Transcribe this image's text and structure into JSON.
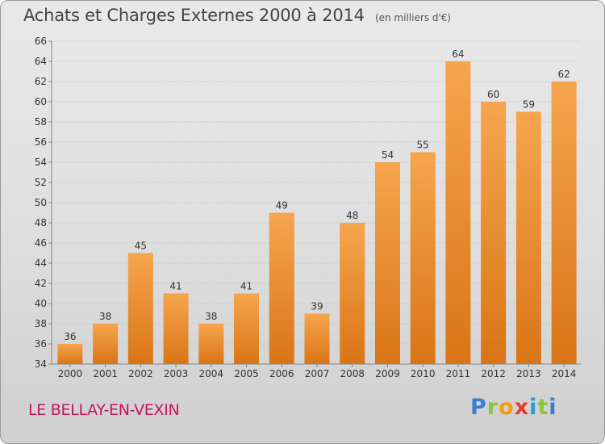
{
  "header": {
    "title": "Achats et Charges Externes 2000 à 2014",
    "subtitle": "(en milliers d'€)"
  },
  "footer": {
    "commune": "LE BELLAY-EN-VEXIN",
    "brand_letters": [
      "P",
      "r",
      "o",
      "x",
      "i",
      "t",
      "i"
    ]
  },
  "colors": {
    "bar_light": "#f6a54e",
    "bar_dark": "#d97516",
    "commune": "#c2185b",
    "brand": [
      "#3a7fd5",
      "#8cc63f",
      "#f39c12",
      "#e63c2e",
      "#2e9ad4",
      "#8cc63f",
      "#3a7fd5"
    ]
  },
  "chart_data": {
    "type": "bar",
    "title": "Achats et Charges Externes 2000 à 2014",
    "subtitle": "(en milliers d'€)",
    "xlabel": "",
    "ylabel": "",
    "categories": [
      "2000",
      "2001",
      "2002",
      "2003",
      "2004",
      "2005",
      "2006",
      "2007",
      "2008",
      "2009",
      "2010",
      "2011",
      "2012",
      "2013",
      "2014"
    ],
    "values": [
      36,
      38,
      45,
      41,
      38,
      41,
      49,
      39,
      48,
      54,
      55,
      64,
      60,
      59,
      62
    ],
    "ylim": [
      34,
      66
    ],
    "yticks": [
      34,
      36,
      38,
      40,
      42,
      44,
      46,
      48,
      50,
      52,
      54,
      56,
      58,
      60,
      62,
      64,
      66
    ],
    "grid": true,
    "data_labels": true,
    "legend": "none"
  }
}
